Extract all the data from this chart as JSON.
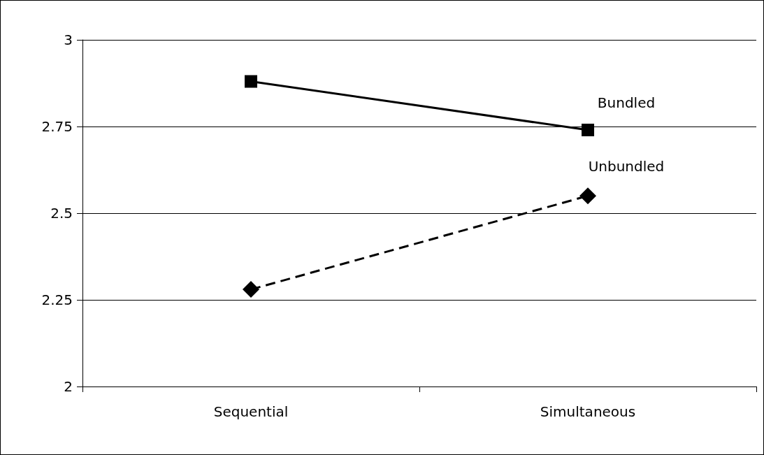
{
  "chart_data": {
    "type": "line",
    "categories": [
      "Sequential",
      "Simultaneous"
    ],
    "series": [
      {
        "name": "Bundled",
        "color": "#000000",
        "values": [
          2.88,
          2.74
        ],
        "marker": "square",
        "line_style": "solid"
      },
      {
        "name": "Unbundled",
        "color": "#000000",
        "values": [
          2.28,
          2.55
        ],
        "marker": "diamond",
        "line_style": "dashed"
      }
    ],
    "ylim": [
      2,
      3
    ],
    "yticks": [
      2,
      2.25,
      2.5,
      2.75,
      3
    ],
    "grid": "y",
    "legend": false
  }
}
